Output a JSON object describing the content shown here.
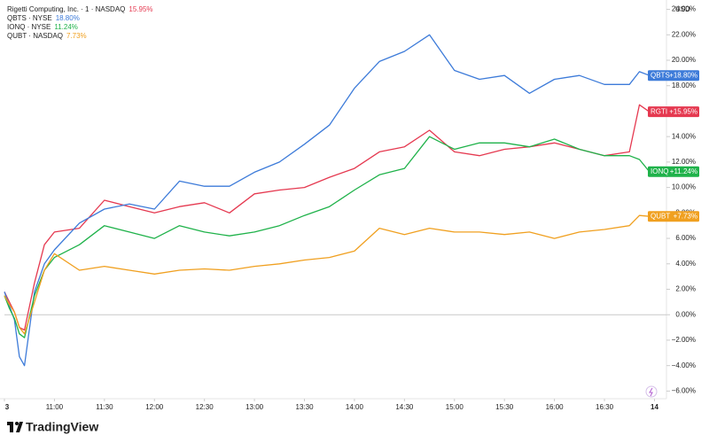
{
  "chart_data": {
    "type": "line",
    "currency": "USD",
    "brand": "TradingView",
    "x": [
      10.5,
      10.55,
      10.6,
      10.65,
      10.7,
      10.8,
      10.9,
      11,
      11.25,
      11.5,
      11.75,
      12,
      12.25,
      12.5,
      12.75,
      13,
      13.25,
      13.5,
      13.75,
      14,
      14.25,
      14.5,
      14.75,
      15,
      15.25,
      15.5,
      15.75,
      16,
      16.25,
      16.5,
      16.75,
      16.85,
      16.95
    ],
    "xlim": [
      10.5,
      17.12
    ],
    "xticks": [
      {
        "value": 10.5,
        "label": "3"
      },
      {
        "value": 11,
        "label": "11:00"
      },
      {
        "value": 11.5,
        "label": "11:30"
      },
      {
        "value": 12,
        "label": "12:00"
      },
      {
        "value": 12.5,
        "label": "12:30"
      },
      {
        "value": 13,
        "label": "13:00"
      },
      {
        "value": 13.5,
        "label": "13:30"
      },
      {
        "value": 14,
        "label": "14:00"
      },
      {
        "value": 14.5,
        "label": "14:30"
      },
      {
        "value": 15,
        "label": "15:00"
      },
      {
        "value": 15.5,
        "label": "15:30"
      },
      {
        "value": 16,
        "label": "16:00"
      },
      {
        "value": 16.5,
        "label": "16:30"
      },
      {
        "value": 17,
        "label": "14"
      }
    ],
    "ylim": [
      -6.6,
      25
    ],
    "yticks": [
      {
        "value": 24,
        "label": "24.00%"
      },
      {
        "value": 22,
        "label": "22.00%"
      },
      {
        "value": 20,
        "label": "20.00%"
      },
      {
        "value": 18,
        "label": "18.00%"
      },
      {
        "value": 16,
        "label": "16.00%"
      },
      {
        "value": 14,
        "label": "14.00%"
      },
      {
        "value": 12,
        "label": "12.00%"
      },
      {
        "value": 10,
        "label": "10.00%"
      },
      {
        "value": 8,
        "label": "8.00%"
      },
      {
        "value": 6,
        "label": "6.00%"
      },
      {
        "value": 4,
        "label": "4.00%"
      },
      {
        "value": 2,
        "label": "2.00%"
      },
      {
        "value": 0,
        "label": "0.00%"
      },
      {
        "value": -2,
        "label": "−2.00%"
      },
      {
        "value": -4,
        "label": "−4.00%"
      },
      {
        "value": -6,
        "label": "−6.00%"
      }
    ],
    "series": [
      {
        "name": "RGTI",
        "legend": "Rigetti Computing, Inc. · 1 · NASDAQ",
        "last_label": "15.95%",
        "tag_label": "+15.95%",
        "color": "#e53950",
        "values": [
          1.8,
          1.0,
          0.2,
          -1.0,
          -1.2,
          2.5,
          5.5,
          6.5,
          6.8,
          9.0,
          8.5,
          8.0,
          8.5,
          8.8,
          8.0,
          9.5,
          9.8,
          10.0,
          10.8,
          11.5,
          12.8,
          13.2,
          14.5,
          12.8,
          12.5,
          13.0,
          13.2,
          13.5,
          13.0,
          12.5,
          12.8,
          16.5,
          15.95
        ]
      },
      {
        "name": "QBTS",
        "legend": "QBTS · NYSE",
        "last_label": "18.80%",
        "tag_label": "+18.80%",
        "color": "#3d7bd9",
        "values": [
          1.8,
          0.7,
          -0.4,
          -3.3,
          -4.0,
          1.8,
          4.0,
          5.1,
          7.2,
          8.3,
          8.7,
          8.3,
          10.5,
          10.1,
          10.1,
          11.2,
          12.0,
          13.4,
          14.9,
          17.8,
          19.9,
          20.7,
          22.0,
          19.2,
          18.5,
          18.8,
          17.4,
          18.5,
          18.8,
          18.1,
          18.1,
          19.1,
          18.8
        ]
      },
      {
        "name": "IONQ",
        "legend": "IONQ · NYSE",
        "last_label": "11.24%",
        "tag_label": "+11.24%",
        "color": "#1fb24a",
        "values": [
          1.5,
          0.5,
          -0.3,
          -1.5,
          -1.8,
          1.5,
          3.5,
          4.5,
          5.5,
          7.0,
          6.5,
          6.0,
          7.0,
          6.5,
          6.2,
          6.5,
          7.0,
          7.8,
          8.5,
          9.8,
          11.0,
          11.5,
          14.0,
          13.0,
          13.5,
          13.5,
          13.2,
          13.8,
          13.0,
          12.5,
          12.5,
          12.2,
          11.24
        ]
      },
      {
        "name": "QUBT",
        "legend": "QUBT · NASDAQ",
        "last_label": "7.73%",
        "tag_label": "+7.73%",
        "color": "#f0a020",
        "values": [
          1.5,
          0.8,
          0.2,
          -1.0,
          -1.5,
          1.0,
          3.5,
          4.8,
          3.5,
          3.8,
          3.5,
          3.2,
          3.5,
          3.6,
          3.5,
          3.8,
          4.0,
          4.3,
          4.5,
          5.0,
          6.8,
          6.3,
          6.8,
          6.5,
          6.5,
          6.3,
          6.5,
          6.0,
          6.5,
          6.7,
          7.0,
          7.8,
          7.73
        ]
      }
    ]
  }
}
